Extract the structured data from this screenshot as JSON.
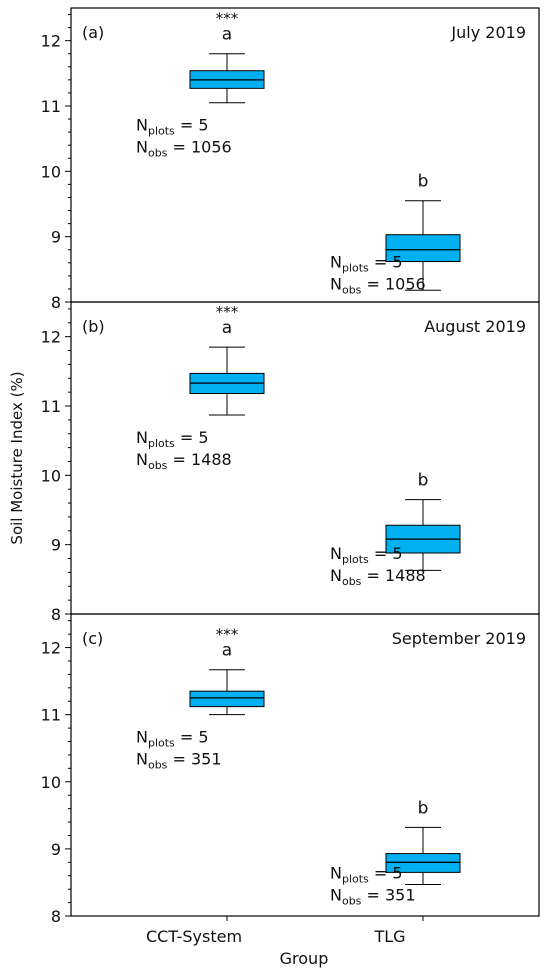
{
  "ylabel": "Soil Moisture Index (%)",
  "xlabel": "Group",
  "colors": {
    "box_fill": "#00B0F0",
    "line": "#000000"
  },
  "chart_data": [
    {
      "type": "box",
      "panel": "(a)",
      "title": "July 2019",
      "categories": [
        "CCT-System",
        "TLG"
      ],
      "ylim": [
        8,
        12.5
      ],
      "yticks": [
        8,
        9,
        10,
        11,
        12
      ],
      "boxes": [
        {
          "category": "CCT-System",
          "whisker_low": 11.05,
          "q1": 11.27,
          "median": 11.4,
          "q3": 11.54,
          "whisker_high": 11.8,
          "letter": "a",
          "significance": "***",
          "n_plots": "N",
          "n_plots_sub": "plots",
          "n_plots_value": "= 5",
          "n_obs": "N",
          "n_obs_sub": "obs",
          "n_obs_value": "= 1056"
        },
        {
          "category": "TLG",
          "whisker_low": 8.18,
          "q1": 8.62,
          "median": 8.8,
          "q3": 9.03,
          "whisker_high": 9.55,
          "letter": "b",
          "significance": "",
          "n_plots": "N",
          "n_plots_sub": "plots",
          "n_plots_value": "= 5",
          "n_obs": "N",
          "n_obs_sub": "obs",
          "n_obs_value": "= 1056"
        }
      ]
    },
    {
      "type": "box",
      "panel": "(b)",
      "title": "August 2019",
      "categories": [
        "CCT-System",
        "TLG"
      ],
      "ylim": [
        8,
        12.5
      ],
      "yticks": [
        8,
        9,
        10,
        11,
        12
      ],
      "boxes": [
        {
          "category": "CCT-System",
          "whisker_low": 10.87,
          "q1": 11.18,
          "median": 11.33,
          "q3": 11.47,
          "whisker_high": 11.85,
          "letter": "a",
          "significance": "***",
          "n_plots": "N",
          "n_plots_sub": "plots",
          "n_plots_value": "= 5",
          "n_obs": "N",
          "n_obs_sub": "obs",
          "n_obs_value": "= 1488"
        },
        {
          "category": "TLG",
          "whisker_low": 8.63,
          "q1": 8.88,
          "median": 9.08,
          "q3": 9.28,
          "whisker_high": 9.65,
          "letter": "b",
          "significance": "",
          "n_plots": "N",
          "n_plots_sub": "plots",
          "n_plots_value": "= 5",
          "n_obs": "N",
          "n_obs_sub": "obs",
          "n_obs_value": "= 1488"
        }
      ]
    },
    {
      "type": "box",
      "panel": "(c)",
      "title": "September 2019",
      "categories": [
        "CCT-System",
        "TLG"
      ],
      "ylim": [
        8,
        12.5
      ],
      "yticks": [
        8,
        9,
        10,
        11,
        12
      ],
      "boxes": [
        {
          "category": "CCT-System",
          "whisker_low": 11.0,
          "q1": 11.12,
          "median": 11.25,
          "q3": 11.35,
          "whisker_high": 11.67,
          "letter": "a",
          "significance": "***",
          "n_plots": "N",
          "n_plots_sub": "plots",
          "n_plots_value": "= 5",
          "n_obs": "N",
          "n_obs_sub": "obs",
          "n_obs_value": "= 351"
        },
        {
          "category": "TLG",
          "whisker_low": 8.47,
          "q1": 8.65,
          "median": 8.8,
          "q3": 8.93,
          "whisker_high": 9.32,
          "letter": "b",
          "significance": "",
          "n_plots": "N",
          "n_plots_sub": "plots",
          "n_plots_value": "= 5",
          "n_obs": "N",
          "n_obs_sub": "obs",
          "n_obs_value": "= 351"
        }
      ]
    }
  ]
}
